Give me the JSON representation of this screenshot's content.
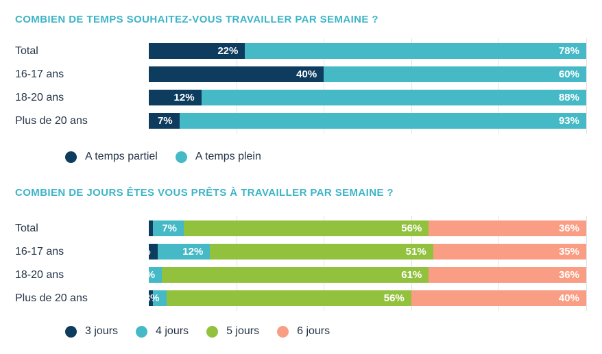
{
  "colors": {
    "title": "#3cb4c8",
    "text": "#243447",
    "gridline": "#e3e3e3",
    "background": "#ffffff",
    "navy": "#0e3c5e",
    "teal": "#45b9c6",
    "green": "#92c13e",
    "salmon": "#f99d84"
  },
  "chart_data": [
    {
      "type": "bar",
      "stacked": true,
      "orientation": "horizontal",
      "title": "COMBIEN DE TEMPS SOUHAITEZ-VOUS TRAVAILLER PAR SEMAINE ?",
      "categories": [
        "Total",
        "16-17 ans",
        "18-20 ans",
        "Plus de 20 ans"
      ],
      "series": [
        {
          "name": "A temps partiel",
          "color": "#0e3c5e",
          "values": [
            22,
            40,
            12,
            7
          ]
        },
        {
          "name": "A temps plein",
          "color": "#45b9c6",
          "values": [
            78,
            60,
            88,
            93
          ]
        }
      ],
      "value_suffix": "%",
      "xlim": [
        0,
        100
      ],
      "gridlines_percent": [
        20,
        40,
        60,
        80,
        100
      ],
      "grid": true,
      "legend_position": "bottom"
    },
    {
      "type": "bar",
      "stacked": true,
      "orientation": "horizontal",
      "title": "COMBIEN DE JOURS ÊTES VOUS PRÊTS À TRAVAILLER PAR SEMAINE ?",
      "categories": [
        "Total",
        "16-17 ans",
        "18-20 ans",
        "Plus de 20 ans"
      ],
      "series": [
        {
          "name": "3 jours",
          "color": "#0e3c5e",
          "values": [
            1,
            2,
            0,
            1
          ]
        },
        {
          "name": "4 jours",
          "color": "#45b9c6",
          "values": [
            7,
            12,
            3,
            3
          ]
        },
        {
          "name": "5 jours",
          "color": "#92c13e",
          "values": [
            56,
            51,
            61,
            56
          ]
        },
        {
          "name": "6 jours",
          "color": "#f99d84",
          "values": [
            36,
            35,
            36,
            40
          ]
        }
      ],
      "value_suffix": "%",
      "xlim": [
        0,
        100
      ],
      "gridlines_percent": [
        20,
        40,
        60,
        80,
        100
      ],
      "grid": true,
      "legend_position": "bottom"
    }
  ]
}
